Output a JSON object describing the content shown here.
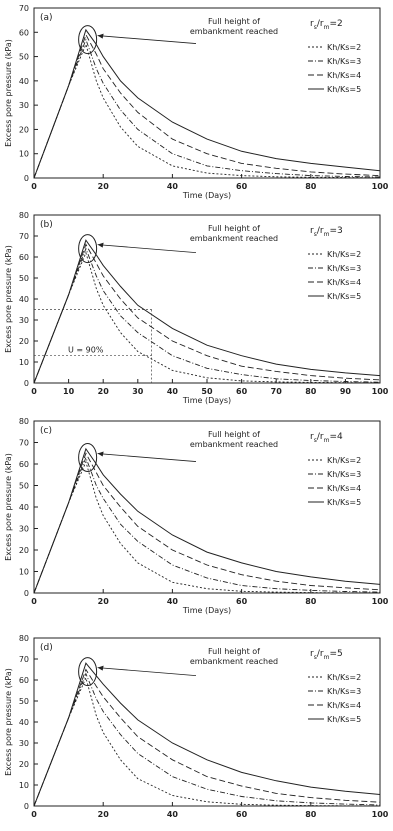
{
  "chart_data": [
    {
      "type": "line",
      "panel_label": "(a)",
      "ratio_label": "rs/rm=2",
      "ratio_main": "r",
      "ratio_sub1": "s",
      "ratio_mid": "/r",
      "ratio_sub2": "m",
      "ratio_tail": "=2",
      "annotation": [
        "Full height of",
        "embankment reached"
      ],
      "xlabel": "Time (Days)",
      "ylabel": "Excess pore pressure (kPa)",
      "xlim": [
        0,
        100
      ],
      "ylim": [
        0,
        70
      ],
      "xticks": [
        0,
        20,
        40,
        60,
        80,
        100
      ],
      "yticks": [
        0,
        10,
        20,
        30,
        40,
        50,
        60,
        70
      ],
      "legend_position": "right",
      "series": [
        {
          "name": "Kh/Ks=2",
          "x": [
            0,
            5,
            10,
            15,
            18,
            20,
            25,
            30,
            40,
            50,
            60,
            70,
            80,
            90,
            100
          ],
          "y": [
            0,
            19,
            38,
            55,
            40,
            33,
            21,
            13,
            5,
            2,
            1,
            0.5,
            0.3,
            0.2,
            0.1
          ]
        },
        {
          "name": "Kh/Ks=3",
          "x": [
            0,
            5,
            10,
            15,
            18,
            20,
            25,
            30,
            40,
            50,
            60,
            70,
            80,
            90,
            100
          ],
          "y": [
            0,
            19,
            38,
            57,
            45,
            39,
            28,
            20,
            10,
            5,
            3,
            1.8,
            1,
            0.6,
            0.4
          ]
        },
        {
          "name": "Kh/Ks=4",
          "x": [
            0,
            5,
            10,
            15,
            18,
            20,
            25,
            30,
            40,
            50,
            60,
            70,
            80,
            90,
            100
          ],
          "y": [
            0,
            19,
            38,
            59,
            51,
            45,
            35,
            27,
            16,
            10,
            6,
            4,
            2.5,
            1.6,
            1
          ]
        },
        {
          "name": "Kh/Ks=5",
          "x": [
            0,
            5,
            10,
            15,
            18,
            20,
            25,
            30,
            40,
            50,
            60,
            70,
            80,
            90,
            100
          ],
          "y": [
            0,
            19,
            38,
            61,
            55,
            50,
            40,
            33,
            23,
            16,
            11,
            8,
            6,
            4.5,
            3
          ]
        }
      ]
    },
    {
      "type": "line",
      "panel_label": "(b)",
      "ratio_label": "rs/rm=3",
      "ratio_main": "r",
      "ratio_sub1": "s",
      "ratio_mid": "/r",
      "ratio_sub2": "m",
      "ratio_tail": "=3",
      "annotation": [
        "Full height of",
        "embankment reached"
      ],
      "inner_note": "U = 90%",
      "xlabel": "Time (Days)",
      "ylabel": "Excess pore pressure (kPa)",
      "xlim": [
        0,
        100
      ],
      "ylim": [
        0,
        80
      ],
      "xticks": [
        0,
        10,
        20,
        30,
        40,
        50,
        60,
        70,
        80,
        90,
        100
      ],
      "yticks": [
        0,
        10,
        20,
        30,
        40,
        50,
        60,
        70,
        80
      ],
      "legend_position": "right",
      "reference_lines": {
        "y_levels": [
          35,
          13
        ],
        "x_end": 34
      },
      "series": [
        {
          "name": "Kh/Ks=2",
          "x": [
            0,
            5,
            10,
            15,
            18,
            20,
            25,
            30,
            40,
            50,
            60,
            70,
            80,
            90,
            100
          ],
          "y": [
            0,
            21,
            42,
            62,
            45,
            37,
            24,
            15,
            6,
            2.5,
            1,
            0.5,
            0.3,
            0.2,
            0.1
          ]
        },
        {
          "name": "Kh/Ks=3",
          "x": [
            0,
            5,
            10,
            15,
            18,
            20,
            25,
            30,
            40,
            50,
            60,
            70,
            80,
            90,
            100
          ],
          "y": [
            0,
            21,
            42,
            64,
            51,
            44,
            32,
            24,
            13,
            7,
            4,
            2,
            1.2,
            0.7,
            0.4
          ]
        },
        {
          "name": "Kh/Ks=4",
          "x": [
            0,
            5,
            10,
            15,
            18,
            20,
            25,
            30,
            40,
            50,
            60,
            70,
            80,
            90,
            100
          ],
          "y": [
            0,
            21,
            42,
            66,
            57,
            51,
            40,
            31,
            20,
            13,
            8,
            5.5,
            3.5,
            2.3,
            1.5
          ]
        },
        {
          "name": "Kh/Ks=5",
          "x": [
            0,
            5,
            10,
            15,
            18,
            20,
            25,
            30,
            40,
            50,
            60,
            70,
            80,
            90,
            100
          ],
          "y": [
            0,
            21,
            42,
            68,
            61,
            56,
            46,
            37,
            26,
            18,
            13,
            9,
            6.5,
            4.8,
            3.5
          ]
        }
      ]
    },
    {
      "type": "line",
      "panel_label": "(c)",
      "ratio_label": "rs/rm=4",
      "ratio_main": "r",
      "ratio_sub1": "s",
      "ratio_mid": "/r",
      "ratio_sub2": "m",
      "ratio_tail": "=4",
      "annotation": [
        "Full height of",
        "embankment reached"
      ],
      "xlabel": "Time (Days)",
      "ylabel": "Excess pore pressure (kPa)",
      "xlim": [
        0,
        100
      ],
      "ylim": [
        0,
        80
      ],
      "xticks": [
        0,
        20,
        40,
        60,
        80,
        100
      ],
      "yticks": [
        0,
        10,
        20,
        30,
        40,
        50,
        60,
        70,
        80
      ],
      "legend_position": "right",
      "series": [
        {
          "name": "Kh/Ks=2",
          "x": [
            0,
            5,
            10,
            15,
            18,
            20,
            25,
            30,
            40,
            50,
            60,
            70,
            80,
            90,
            100
          ],
          "y": [
            0,
            21,
            42,
            61,
            44,
            36,
            23,
            14,
            5,
            2,
            0.8,
            0.4,
            0.2,
            0.1,
            0.1
          ]
        },
        {
          "name": "Kh/Ks=3",
          "x": [
            0,
            5,
            10,
            15,
            18,
            20,
            25,
            30,
            40,
            50,
            60,
            70,
            80,
            90,
            100
          ],
          "y": [
            0,
            21,
            42,
            63,
            50,
            44,
            32,
            24,
            13,
            7,
            3.5,
            2,
            1.2,
            0.7,
            0.4
          ]
        },
        {
          "name": "Kh/Ks=4",
          "x": [
            0,
            5,
            10,
            15,
            18,
            20,
            25,
            30,
            40,
            50,
            60,
            70,
            80,
            90,
            100
          ],
          "y": [
            0,
            21,
            42,
            65,
            56,
            50,
            40,
            31,
            20,
            13,
            8.5,
            5.5,
            3.5,
            2.4,
            1.5
          ]
        },
        {
          "name": "Kh/Ks=5",
          "x": [
            0,
            5,
            10,
            15,
            18,
            20,
            25,
            30,
            40,
            50,
            60,
            70,
            80,
            90,
            100
          ],
          "y": [
            0,
            21,
            42,
            67,
            60,
            55,
            46,
            38,
            27,
            19,
            14,
            10,
            7.5,
            5.5,
            4
          ]
        }
      ]
    },
    {
      "type": "line",
      "panel_label": "(d)",
      "ratio_label": "rs/rm=5",
      "ratio_main": "r",
      "ratio_sub1": "s",
      "ratio_mid": "/r",
      "ratio_sub2": "m",
      "ratio_tail": "=5",
      "annotation": [
        "Full height of",
        "embankment reached"
      ],
      "xlabel": "",
      "ylabel": "Excess pore pressure (kPa)",
      "xlim": [
        0,
        100
      ],
      "ylim": [
        0,
        80
      ],
      "xticks": [
        0,
        20,
        40,
        60,
        80,
        100
      ],
      "yticks": [
        0,
        10,
        20,
        30,
        40,
        50,
        60,
        70,
        80
      ],
      "legend_position": "right",
      "series": [
        {
          "name": "Kh/Ks=2",
          "x": [
            0,
            5,
            10,
            15,
            18,
            20,
            25,
            30,
            40,
            50,
            60,
            70,
            80,
            90,
            100
          ],
          "y": [
            0,
            21,
            42,
            61,
            43,
            35,
            22,
            13,
            5,
            2,
            0.8,
            0.4,
            0.2,
            0.1,
            0.1
          ]
        },
        {
          "name": "Kh/Ks=3",
          "x": [
            0,
            5,
            10,
            15,
            18,
            20,
            25,
            30,
            40,
            50,
            60,
            70,
            80,
            90,
            100
          ],
          "y": [
            0,
            21,
            42,
            63,
            51,
            45,
            34,
            25,
            14,
            8,
            4.5,
            2.5,
            1.5,
            0.9,
            0.5
          ]
        },
        {
          "name": "Kh/Ks=4",
          "x": [
            0,
            5,
            10,
            15,
            18,
            20,
            25,
            30,
            40,
            50,
            60,
            70,
            80,
            90,
            100
          ],
          "y": [
            0,
            21,
            42,
            65,
            57,
            52,
            42,
            33,
            22,
            14,
            9.5,
            6,
            4,
            2.7,
            1.8
          ]
        },
        {
          "name": "Kh/Ks=5",
          "x": [
            0,
            5,
            10,
            15,
            18,
            20,
            25,
            30,
            40,
            50,
            60,
            70,
            80,
            90,
            100
          ],
          "y": [
            0,
            21,
            42,
            68,
            62,
            58,
            49,
            41,
            30,
            22,
            16,
            12,
            9,
            7,
            5.5
          ]
        }
      ]
    }
  ]
}
